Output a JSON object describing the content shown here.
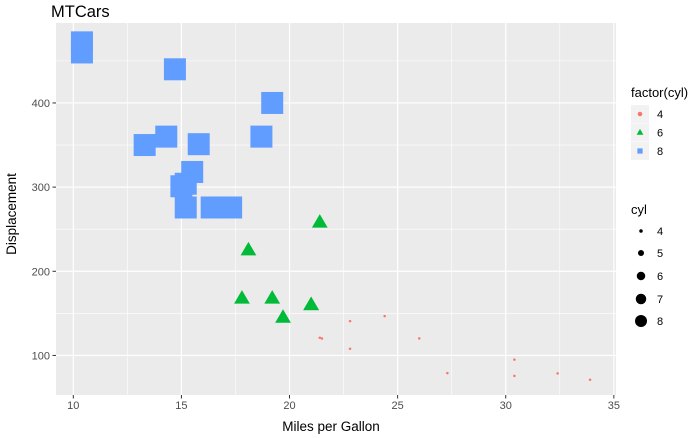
{
  "chart_data": {
    "type": "scatter",
    "title": "MTCars",
    "xlabel": "Miles per Gallon",
    "ylabel": "Displacement",
    "xlim": [
      9.2,
      35.1
    ],
    "ylim": [
      53,
      495
    ],
    "x_ticks": [
      10,
      15,
      20,
      25,
      30,
      35
    ],
    "y_ticks": [
      100,
      200,
      300,
      400
    ],
    "grid": true,
    "legend_position": "right",
    "colors": {
      "4": "#F8766D",
      "6": "#00BA38",
      "8": "#619CFF",
      "panel": "#EBEBEB"
    },
    "series": [
      {
        "name": "4",
        "shape": "circle",
        "size_cyl": 4,
        "points": [
          [
            22.8,
            108
          ],
          [
            24.4,
            146.7
          ],
          [
            22.8,
            140.8
          ],
          [
            32.4,
            78.7
          ],
          [
            30.4,
            75.7
          ],
          [
            33.9,
            71.1
          ],
          [
            21.5,
            120.1
          ],
          [
            27.3,
            79
          ],
          [
            26,
            120.3
          ],
          [
            30.4,
            95.1
          ],
          [
            21.4,
            121
          ]
        ]
      },
      {
        "name": "6",
        "shape": "triangle",
        "size_cyl": 6,
        "points": [
          [
            21,
            160
          ],
          [
            21,
            160
          ],
          [
            21.4,
            258
          ],
          [
            18.1,
            225
          ],
          [
            19.2,
            167.6
          ],
          [
            17.8,
            167.6
          ],
          [
            19.7,
            145
          ]
        ]
      },
      {
        "name": "8",
        "shape": "square",
        "size_cyl": 8,
        "points": [
          [
            18.7,
            360
          ],
          [
            14.3,
            360
          ],
          [
            16.4,
            275.8
          ],
          [
            17.3,
            275.8
          ],
          [
            15.2,
            275.8
          ],
          [
            10.4,
            472
          ],
          [
            10.4,
            460
          ],
          [
            14.7,
            440
          ],
          [
            15.5,
            318
          ],
          [
            15.2,
            304
          ],
          [
            13.3,
            350
          ],
          [
            19.2,
            400
          ],
          [
            15.8,
            351
          ],
          [
            15,
            301
          ]
        ]
      }
    ],
    "legends": {
      "color": {
        "title": "factor(cyl)",
        "entries": [
          "4",
          "6",
          "8"
        ]
      },
      "size": {
        "title": "cyl",
        "entries": [
          "4",
          "5",
          "6",
          "7",
          "8"
        ]
      }
    }
  }
}
